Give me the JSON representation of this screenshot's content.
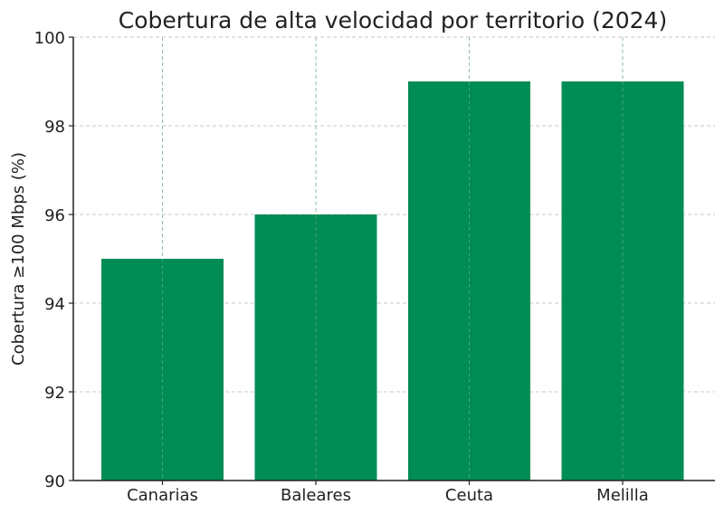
{
  "chart_data": {
    "type": "bar",
    "title": "Cobertura de alta velocidad por territorio (2024)",
    "xlabel": "",
    "ylabel": "Cobertura ≥100 Mbps (%)",
    "categories": [
      "Canarias",
      "Baleares",
      "Ceuta",
      "Melilla"
    ],
    "values": [
      95,
      96,
      99,
      99
    ],
    "ylim": [
      90,
      100
    ],
    "yticks": [
      90,
      92,
      94,
      96,
      98,
      100
    ],
    "grid": true,
    "legend": null,
    "bar_color": "#008C55"
  }
}
